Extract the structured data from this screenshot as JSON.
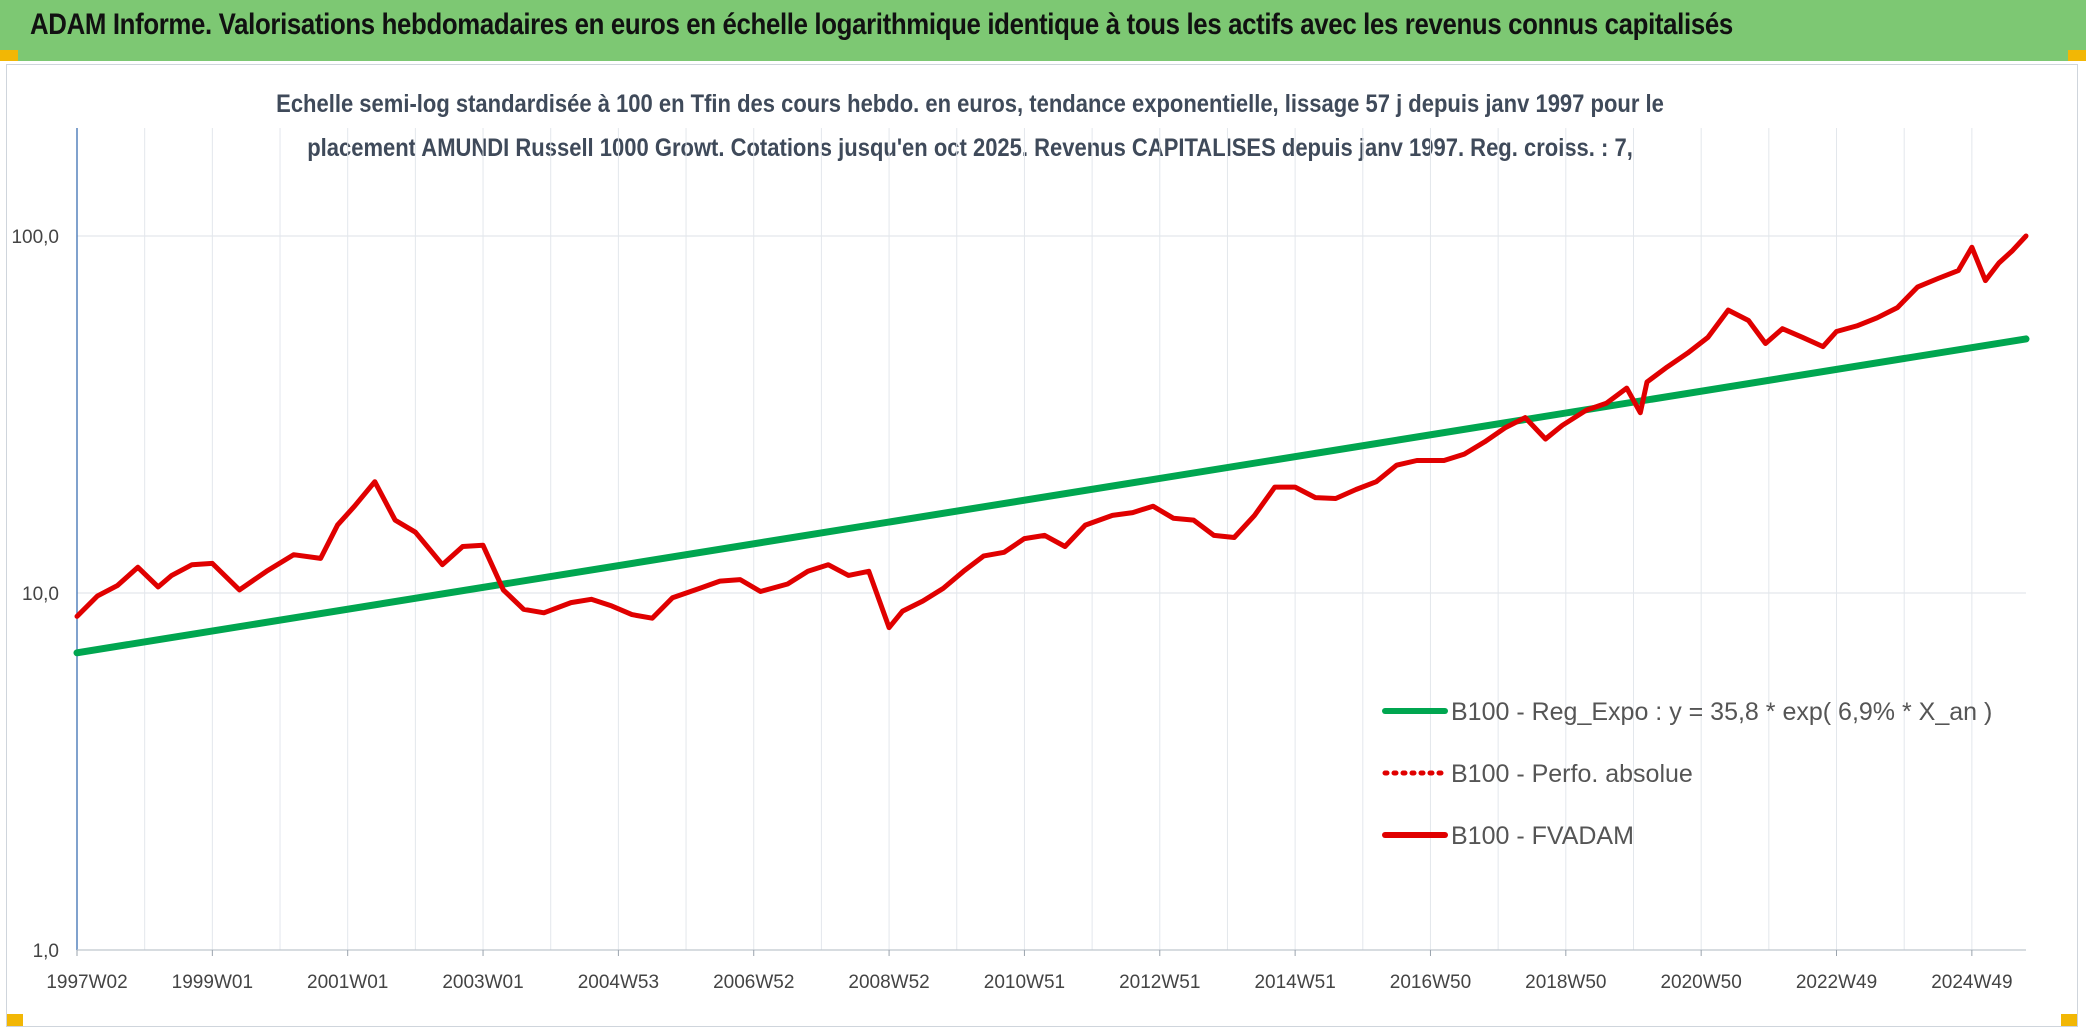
{
  "header": {
    "title": "ADAM Informe. Valorisations hebdomadaires en euros en échelle logarithmique identique à tous les actifs avec les revenus connus capitalisés"
  },
  "chart_data": {
    "type": "line",
    "title_line1": "Echelle semi-log standardisée à 100 en Tfin des cours hebdo. en euros, tendance exponentielle, lissage 57 j depuis janv 1997 pour le",
    "title_line2": "placement AMUNDI Russell 1000 Growt. Cotations jusqu'en oct 2025. Revenus CAPITALISES depuis janv 1997. Reg. croiss. : 7,",
    "y_scale": "log",
    "ylim": [
      1,
      200
    ],
    "y_ticks": [
      {
        "value": 1,
        "label": "1,0"
      },
      {
        "value": 10,
        "label": "10,0"
      },
      {
        "value": 100,
        "label": "100,0"
      }
    ],
    "xlim": [
      1997.0,
      2025.8
    ],
    "x_ticks": [
      {
        "x": 1997.0,
        "label": "1997W02"
      },
      {
        "x": 1999.0,
        "label": "1999W01"
      },
      {
        "x": 2001.0,
        "label": "2001W01"
      },
      {
        "x": 2003.0,
        "label": "2003W01"
      },
      {
        "x": 2005.0,
        "label": "2004W53"
      },
      {
        "x": 2007.0,
        "label": "2006W52"
      },
      {
        "x": 2009.0,
        "label": "2008W52"
      },
      {
        "x": 2011.0,
        "label": "2010W51"
      },
      {
        "x": 2013.0,
        "label": "2012W51"
      },
      {
        "x": 2015.0,
        "label": "2014W51"
      },
      {
        "x": 2017.0,
        "label": "2016W50"
      },
      {
        "x": 2019.0,
        "label": "2018W50"
      },
      {
        "x": 2021.0,
        "label": "2020W50"
      },
      {
        "x": 2023.0,
        "label": "2022W49"
      },
      {
        "x": 2025.0,
        "label": "2024W49"
      }
    ],
    "grid": true,
    "legend_position": "bottom-right",
    "series": [
      {
        "name": "B100 - Reg_Expo : y = 35,8 * exp( 6,9% *  X_an )",
        "color": "#00a650",
        "style": "solid",
        "x": [
          1997.0,
          2025.8
        ],
        "y": [
          6.8,
          51.5
        ]
      },
      {
        "name": "B100 - Perfo. absolue",
        "color": "#e00000",
        "style": "dotted",
        "x": [],
        "y": []
      },
      {
        "name": "B100 - FVADAM",
        "color": "#e00000",
        "style": "solid",
        "x": [
          1997.0,
          1997.3,
          1997.6,
          1997.9,
          1998.2,
          1998.4,
          1998.7,
          1999.0,
          1999.4,
          1999.8,
          2000.2,
          2000.6,
          2000.85,
          2001.1,
          2001.4,
          2001.7,
          2002.0,
          2002.4,
          2002.7,
          2003.0,
          2003.3,
          2003.6,
          2003.9,
          2004.3,
          2004.6,
          2004.9,
          2005.2,
          2005.5,
          2005.8,
          2006.2,
          2006.5,
          2006.8,
          2007.1,
          2007.5,
          2007.8,
          2008.1,
          2008.4,
          2008.7,
          2009.0,
          2009.2,
          2009.5,
          2009.8,
          2010.1,
          2010.4,
          2010.7,
          2011.0,
          2011.3,
          2011.6,
          2011.9,
          2012.3,
          2012.6,
          2012.9,
          2013.2,
          2013.5,
          2013.8,
          2014.1,
          2014.4,
          2014.7,
          2015.0,
          2015.3,
          2015.6,
          2015.9,
          2016.2,
          2016.5,
          2016.8,
          2017.2,
          2017.5,
          2017.8,
          2018.1,
          2018.4,
          2018.7,
          2018.95,
          2019.3,
          2019.6,
          2019.9,
          2020.1,
          2020.2,
          2020.5,
          2020.8,
          2021.1,
          2021.4,
          2021.7,
          2021.95,
          2022.2,
          2022.5,
          2022.8,
          2023.0,
          2023.3,
          2023.6,
          2023.9,
          2024.2,
          2024.5,
          2024.8,
          2025.0,
          2025.2,
          2025.4,
          2025.6,
          2025.8
        ],
        "y": [
          8.6,
          9.8,
          10.5,
          11.8,
          10.4,
          11.2,
          12.0,
          12.1,
          10.2,
          11.5,
          12.8,
          12.5,
          15.5,
          17.5,
          20.5,
          16.0,
          14.8,
          12.0,
          13.5,
          13.6,
          10.2,
          9.0,
          8.8,
          9.4,
          9.6,
          9.2,
          8.7,
          8.5,
          9.7,
          10.3,
          10.8,
          10.9,
          10.1,
          10.6,
          11.5,
          12.0,
          11.2,
          11.5,
          8.0,
          8.9,
          9.5,
          10.3,
          11.5,
          12.7,
          13.0,
          14.2,
          14.5,
          13.5,
          15.5,
          16.5,
          16.8,
          17.5,
          16.2,
          16.0,
          14.5,
          14.3,
          16.5,
          19.8,
          19.8,
          18.5,
          18.4,
          19.5,
          20.5,
          22.8,
          23.5,
          23.5,
          24.5,
          26.5,
          29.0,
          31.0,
          27.0,
          29.5,
          32.5,
          34.0,
          37.5,
          32.0,
          39.0,
          43.0,
          47.0,
          52.0,
          62.0,
          58.0,
          50.0,
          55.0,
          52.0,
          49.0,
          54.0,
          56.0,
          59.0,
          63.0,
          72.0,
          76.0,
          80.0,
          93.0,
          75.0,
          84.0,
          91.0,
          100.0
        ]
      }
    ]
  }
}
